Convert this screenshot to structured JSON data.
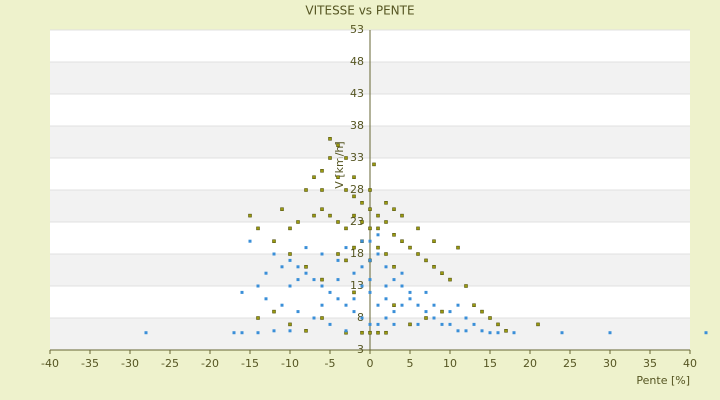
{
  "chart_data": {
    "type": "scatter",
    "title": "VITESSE vs PENTE",
    "x_label": "Pente [%]",
    "y_label": "V [km/h]",
    "xlim": [
      -40,
      40
    ],
    "xticks": [
      -40,
      -35,
      -30,
      -25,
      -20,
      -15,
      -10,
      -5,
      0,
      5,
      10,
      15,
      20,
      25,
      30,
      35,
      40
    ],
    "ylim": [
      3,
      53
    ],
    "yticks": [
      3,
      8,
      13,
      18,
      23,
      28,
      33,
      38,
      43,
      48,
      53
    ],
    "grid": true,
    "series": [
      {
        "color": "#9a9a10",
        "x": [
          -5,
          -4,
          -3,
          -5,
          -7,
          -6,
          -4,
          -8,
          -6,
          -3,
          -2,
          -1,
          0,
          1,
          2,
          -2,
          -1,
          0,
          1,
          3,
          -3,
          -4,
          -5,
          -6,
          -7,
          -9,
          -10,
          -12,
          -15,
          -14,
          -11,
          -10,
          -8,
          -6,
          4,
          5,
          6,
          7,
          8,
          9,
          10,
          11,
          12,
          13,
          14,
          15,
          16,
          17,
          21,
          -2,
          -1,
          1,
          2,
          3,
          -3,
          -4,
          0,
          0.5,
          -2,
          0,
          2,
          3,
          4,
          6,
          8,
          -1,
          0,
          1,
          -3,
          2,
          -8,
          -10,
          5,
          7,
          9,
          -12,
          -14,
          -6,
          3,
          -2
        ],
        "values": [
          36,
          35,
          33,
          33,
          30,
          31,
          30,
          28,
          28,
          28,
          27,
          26,
          25,
          24,
          23,
          24,
          23,
          22,
          22,
          21,
          22,
          23,
          24,
          25,
          24,
          23,
          22,
          20,
          24,
          22,
          25,
          18,
          16,
          14,
          20,
          19,
          18,
          17,
          16,
          15,
          14,
          19,
          13,
          10,
          9,
          8,
          7,
          6,
          7,
          19,
          20,
          19,
          18,
          16,
          17,
          18,
          17,
          32,
          30,
          28,
          26,
          25,
          24,
          22,
          20,
          5.7,
          5.7,
          5.7,
          5.7,
          5.7,
          6,
          7,
          7,
          8,
          9,
          9,
          8,
          8,
          10,
          12
        ]
      },
      {
        "color": "#3a8fd8",
        "x": [
          -28,
          -17,
          -16,
          -14,
          -12,
          -10,
          -16,
          -14,
          -13,
          -15,
          -12,
          -10,
          -9,
          -8,
          -7,
          -6,
          -5,
          -4,
          -3,
          -2,
          -1,
          0,
          1,
          2,
          3,
          4,
          5,
          6,
          7,
          8,
          9,
          10,
          11,
          12,
          13,
          14,
          15,
          16,
          18,
          24,
          30,
          42,
          -11,
          -9,
          -7,
          -5,
          -3,
          -2,
          -1,
          0,
          1,
          2,
          3,
          4,
          5,
          -4,
          -6,
          -8,
          -3,
          -1,
          0,
          1,
          2,
          -2,
          0,
          1,
          3,
          6,
          8,
          10,
          11,
          12,
          -10,
          -9,
          -11,
          -13,
          -4,
          -6,
          0,
          -1,
          2,
          4,
          7
        ],
        "values": [
          5.7,
          5.7,
          5.7,
          5.7,
          6,
          6,
          12,
          13,
          15,
          20,
          18,
          17,
          16,
          15,
          14,
          13,
          12,
          11,
          10,
          9,
          8,
          7,
          7,
          8,
          9,
          10,
          11,
          10,
          9,
          8,
          7,
          7,
          6,
          6,
          7,
          6,
          5.7,
          5.7,
          5.7,
          5.7,
          5.7,
          5.7,
          10,
          9,
          8,
          7,
          6,
          15,
          16,
          17,
          18,
          16,
          14,
          13,
          12,
          17,
          18,
          19,
          19,
          20,
          20,
          21,
          13,
          11,
          12,
          10,
          7,
          7,
          10,
          9,
          10,
          8,
          13,
          14,
          16,
          11,
          14,
          10,
          14,
          13,
          11,
          15,
          12
        ]
      }
    ]
  }
}
